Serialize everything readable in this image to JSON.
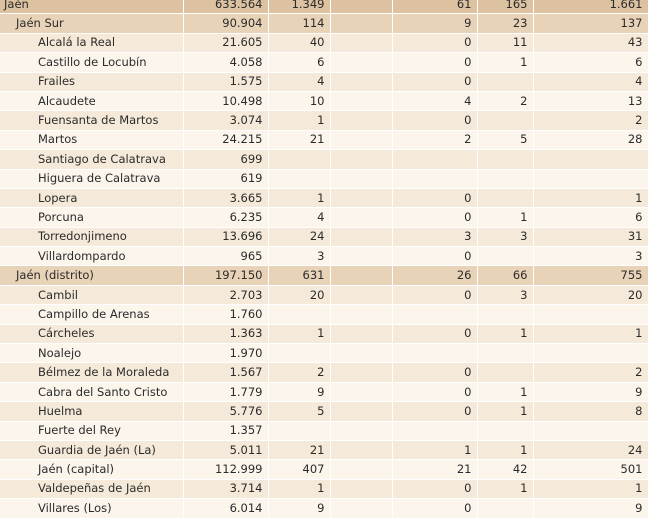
{
  "rows": [
    {
      "level": 0,
      "name": "Jaén",
      "c1": "633.564",
      "c2": "1.349",
      "c3": "",
      "c4": "61",
      "c5": "165",
      "c6": "1.661"
    },
    {
      "level": 1,
      "name": "Jaén Sur",
      "c1": "90.904",
      "c2": "114",
      "c3": "",
      "c4": "9",
      "c5": "23",
      "c6": "137"
    },
    {
      "level": 2,
      "name": "Alcalá la Real",
      "c1": "21.605",
      "c2": "40",
      "c3": "",
      "c4": "0",
      "c5": "11",
      "c6": "43"
    },
    {
      "level": 2,
      "name": "Castillo de Locubín",
      "c1": "4.058",
      "c2": "6",
      "c3": "",
      "c4": "0",
      "c5": "1",
      "c6": "6"
    },
    {
      "level": 2,
      "name": "Frailes",
      "c1": "1.575",
      "c2": "4",
      "c3": "",
      "c4": "0",
      "c5": "",
      "c6": "4"
    },
    {
      "level": 2,
      "name": "Alcaudete",
      "c1": "10.498",
      "c2": "10",
      "c3": "",
      "c4": "4",
      "c5": "2",
      "c6": "13"
    },
    {
      "level": 2,
      "name": "Fuensanta de Martos",
      "c1": "3.074",
      "c2": "1",
      "c3": "",
      "c4": "0",
      "c5": "",
      "c6": "2"
    },
    {
      "level": 2,
      "name": "Martos",
      "c1": "24.215",
      "c2": "21",
      "c3": "",
      "c4": "2",
      "c5": "5",
      "c6": "28"
    },
    {
      "level": 2,
      "name": "Santiago de Calatrava",
      "c1": "699",
      "c2": "",
      "c3": "",
      "c4": "",
      "c5": "",
      "c6": ""
    },
    {
      "level": 2,
      "name": "Higuera de Calatrava",
      "c1": "619",
      "c2": "",
      "c3": "",
      "c4": "",
      "c5": "",
      "c6": ""
    },
    {
      "level": 2,
      "name": "Lopera",
      "c1": "3.665",
      "c2": "1",
      "c3": "",
      "c4": "0",
      "c5": "",
      "c6": "1"
    },
    {
      "level": 2,
      "name": "Porcuna",
      "c1": "6.235",
      "c2": "4",
      "c3": "",
      "c4": "0",
      "c5": "1",
      "c6": "6"
    },
    {
      "level": 2,
      "name": "Torredonjimeno",
      "c1": "13.696",
      "c2": "24",
      "c3": "",
      "c4": "3",
      "c5": "3",
      "c6": "31"
    },
    {
      "level": 2,
      "name": "Villardompardo",
      "c1": "965",
      "c2": "3",
      "c3": "",
      "c4": "0",
      "c5": "",
      "c6": "3"
    },
    {
      "level": 1,
      "name": "Jaén (distrito)",
      "c1": "197.150",
      "c2": "631",
      "c3": "",
      "c4": "26",
      "c5": "66",
      "c6": "755"
    },
    {
      "level": 2,
      "name": "Cambil",
      "c1": "2.703",
      "c2": "20",
      "c3": "",
      "c4": "0",
      "c5": "3",
      "c6": "20"
    },
    {
      "level": 2,
      "name": "Campillo de Arenas",
      "c1": "1.760",
      "c2": "",
      "c3": "",
      "c4": "",
      "c5": "",
      "c6": ""
    },
    {
      "level": 2,
      "name": "Cárcheles",
      "c1": "1.363",
      "c2": "1",
      "c3": "",
      "c4": "0",
      "c5": "1",
      "c6": "1"
    },
    {
      "level": 2,
      "name": "Noalejo",
      "c1": "1.970",
      "c2": "",
      "c3": "",
      "c4": "",
      "c5": "",
      "c6": ""
    },
    {
      "level": 2,
      "name": "Bélmez de la Moraleda",
      "c1": "1.567",
      "c2": "2",
      "c3": "",
      "c4": "0",
      "c5": "",
      "c6": "2"
    },
    {
      "level": 2,
      "name": "Cabra del Santo Cristo",
      "c1": "1.779",
      "c2": "9",
      "c3": "",
      "c4": "0",
      "c5": "1",
      "c6": "9"
    },
    {
      "level": 2,
      "name": "Huelma",
      "c1": "5.776",
      "c2": "5",
      "c3": "",
      "c4": "0",
      "c5": "1",
      "c6": "8"
    },
    {
      "level": 2,
      "name": "Fuerte del Rey",
      "c1": "1.357",
      "c2": "",
      "c3": "",
      "c4": "",
      "c5": "",
      "c6": ""
    },
    {
      "level": 2,
      "name": "Guardia de Jaén (La)",
      "c1": "5.011",
      "c2": "21",
      "c3": "",
      "c4": "1",
      "c5": "1",
      "c6": "24"
    },
    {
      "level": 2,
      "name": "Jaén (capital)",
      "c1": "112.999",
      "c2": "407",
      "c3": "",
      "c4": "21",
      "c5": "42",
      "c6": "501"
    },
    {
      "level": 2,
      "name": "Valdepeñas de Jaén",
      "c1": "3.714",
      "c2": "1",
      "c3": "",
      "c4": "0",
      "c5": "1",
      "c6": "1"
    },
    {
      "level": 2,
      "name": "Villares (Los)",
      "c1": "6.014",
      "c2": "9",
      "c3": "",
      "c4": "0",
      "c5": "",
      "c6": "9"
    }
  ]
}
